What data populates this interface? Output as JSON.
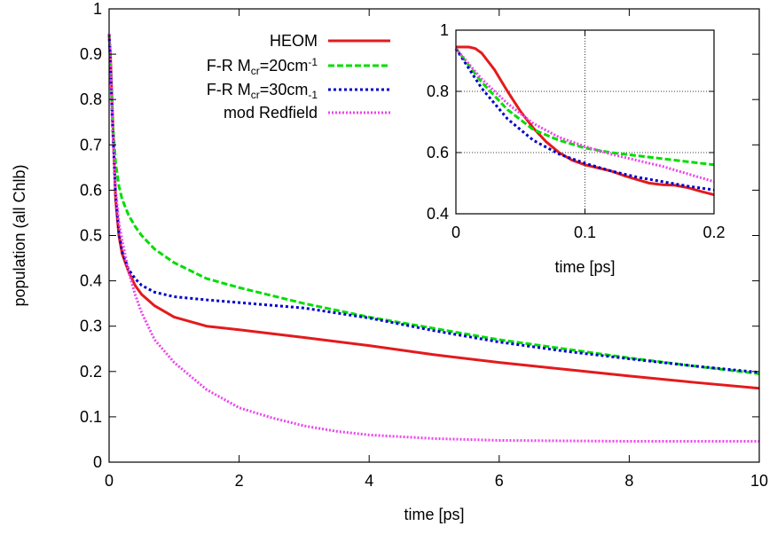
{
  "chart_data": [
    {
      "type": "line",
      "xlabel": "time [ps]",
      "ylabel": "population (all Chlb)",
      "xlim": [
        0,
        10
      ],
      "ylim": [
        0,
        1
      ],
      "xticks": [
        0,
        2,
        4,
        6,
        8,
        10
      ],
      "yticks": [
        0,
        0.1,
        0.2,
        0.3,
        0.4,
        0.5,
        0.6,
        0.7,
        0.8,
        0.9,
        1
      ],
      "xtick_labels": [
        "0",
        "2",
        "4",
        "6",
        "8",
        "10"
      ],
      "ytick_labels": [
        "0",
        "0.1",
        "0.2",
        "0.3",
        "0.4",
        "0.5",
        "0.6",
        "0.7",
        "0.8",
        "0.9",
        "1"
      ],
      "grid": false,
      "legend_position": "top-center",
      "series": [
        {
          "name": "HEOM",
          "legend": {
            "pre": "HEOM",
            "sub1": "",
            "mid": "",
            "sup": "",
            "sub2": ""
          },
          "color": "#e41a1c",
          "dash": "solid",
          "x": [
            0,
            0.02,
            0.05,
            0.1,
            0.15,
            0.2,
            0.3,
            0.4,
            0.5,
            0.7,
            1.0,
            1.5,
            2,
            3,
            4,
            5,
            6,
            7,
            8,
            9,
            10
          ],
          "y": [
            0.945,
            0.9,
            0.78,
            0.58,
            0.5,
            0.46,
            0.42,
            0.39,
            0.37,
            0.345,
            0.32,
            0.3,
            0.292,
            0.275,
            0.257,
            0.237,
            0.22,
            0.205,
            0.19,
            0.176,
            0.163
          ]
        },
        {
          "name": "F-R M_cr=20cm^-1",
          "legend": {
            "pre": "F-R M",
            "sub1": "cr",
            "mid": "=20cm",
            "sup": "-1",
            "sub2": ""
          },
          "color": "#00dd00",
          "dash": "dashed",
          "x": [
            0,
            0.02,
            0.05,
            0.1,
            0.15,
            0.2,
            0.3,
            0.4,
            0.5,
            0.7,
            1.0,
            1.5,
            2,
            3,
            4,
            5,
            6,
            7,
            8,
            9,
            10
          ],
          "y": [
            0.945,
            0.88,
            0.76,
            0.66,
            0.61,
            0.58,
            0.545,
            0.52,
            0.5,
            0.47,
            0.44,
            0.405,
            0.385,
            0.35,
            0.32,
            0.295,
            0.27,
            0.25,
            0.23,
            0.212,
            0.195
          ]
        },
        {
          "name": "F-R M_cr=30cm_-1",
          "legend": {
            "pre": "F-R M",
            "sub1": "cr",
            "mid": "=30cm",
            "sup": "",
            "sub2": "-1"
          },
          "color": "#0000cc",
          "dash": "dotted",
          "x": [
            0,
            0.02,
            0.05,
            0.1,
            0.15,
            0.2,
            0.3,
            0.4,
            0.5,
            0.7,
            1.0,
            1.5,
            2,
            3,
            4,
            5,
            6,
            7,
            8,
            9,
            10
          ],
          "y": [
            0.945,
            0.88,
            0.75,
            0.59,
            0.51,
            0.465,
            0.425,
            0.405,
            0.39,
            0.375,
            0.365,
            0.358,
            0.352,
            0.34,
            0.318,
            0.29,
            0.265,
            0.245,
            0.228,
            0.212,
            0.198
          ]
        },
        {
          "name": "mod Redfield",
          "legend": {
            "pre": "mod Redfield",
            "sub1": "",
            "mid": "",
            "sup": "",
            "sub2": ""
          },
          "color": "#ee44ee",
          "dash": "dotted-fine",
          "x": [
            0,
            0.02,
            0.05,
            0.1,
            0.15,
            0.2,
            0.3,
            0.4,
            0.5,
            0.7,
            1.0,
            1.5,
            2,
            2.5,
            3,
            3.5,
            4,
            5,
            6,
            7,
            8,
            9,
            10
          ],
          "y": [
            0.945,
            0.88,
            0.75,
            0.6,
            0.53,
            0.49,
            0.42,
            0.37,
            0.33,
            0.27,
            0.22,
            0.16,
            0.12,
            0.098,
            0.08,
            0.068,
            0.06,
            0.052,
            0.048,
            0.047,
            0.046,
            0.046,
            0.046
          ]
        }
      ]
    },
    {
      "type": "line",
      "xlabel": "time [ps]",
      "ylabel": "",
      "xlim": [
        0,
        0.2
      ],
      "ylim": [
        0.4,
        1
      ],
      "xticks": [
        0,
        0.1,
        0.2
      ],
      "yticks": [
        0.4,
        0.6,
        0.8,
        1
      ],
      "xtick_labels": [
        "0",
        "0.1",
        "0.2"
      ],
      "ytick_labels": [
        "0.4",
        "0.6",
        "0.8",
        "1"
      ],
      "grid": true,
      "series": [
        {
          "name": "HEOM",
          "color": "#e41a1c",
          "dash": "solid",
          "x": [
            0,
            0.01,
            0.015,
            0.02,
            0.03,
            0.04,
            0.05,
            0.06,
            0.07,
            0.08,
            0.09,
            0.1,
            0.11,
            0.12,
            0.13,
            0.14,
            0.15,
            0.16,
            0.17,
            0.18,
            0.19,
            0.2
          ],
          "y": [
            0.945,
            0.945,
            0.94,
            0.925,
            0.87,
            0.8,
            0.735,
            0.68,
            0.635,
            0.6,
            0.575,
            0.56,
            0.55,
            0.54,
            0.525,
            0.512,
            0.5,
            0.495,
            0.493,
            0.485,
            0.473,
            0.462
          ]
        },
        {
          "name": "F-R M_cr=20cm^-1",
          "color": "#00dd00",
          "dash": "dashed",
          "x": [
            0,
            0.02,
            0.04,
            0.06,
            0.08,
            0.1,
            0.12,
            0.14,
            0.16,
            0.18,
            0.2
          ],
          "y": [
            0.94,
            0.83,
            0.74,
            0.675,
            0.64,
            0.615,
            0.6,
            0.59,
            0.58,
            0.57,
            0.56
          ]
        },
        {
          "name": "F-R M_cr=30cm_-1",
          "color": "#0000cc",
          "dash": "dotted",
          "x": [
            0,
            0.02,
            0.04,
            0.06,
            0.08,
            0.1,
            0.12,
            0.14,
            0.16,
            0.18,
            0.2
          ],
          "y": [
            0.94,
            0.81,
            0.71,
            0.64,
            0.595,
            0.565,
            0.54,
            0.52,
            0.505,
            0.49,
            0.478
          ]
        },
        {
          "name": "mod Redfield",
          "color": "#ee44ee",
          "dash": "dotted-fine",
          "x": [
            0,
            0.02,
            0.04,
            0.06,
            0.08,
            0.1,
            0.12,
            0.14,
            0.16,
            0.18,
            0.2
          ],
          "y": [
            0.94,
            0.84,
            0.76,
            0.695,
            0.65,
            0.62,
            0.595,
            0.575,
            0.555,
            0.53,
            0.505
          ]
        }
      ]
    }
  ]
}
